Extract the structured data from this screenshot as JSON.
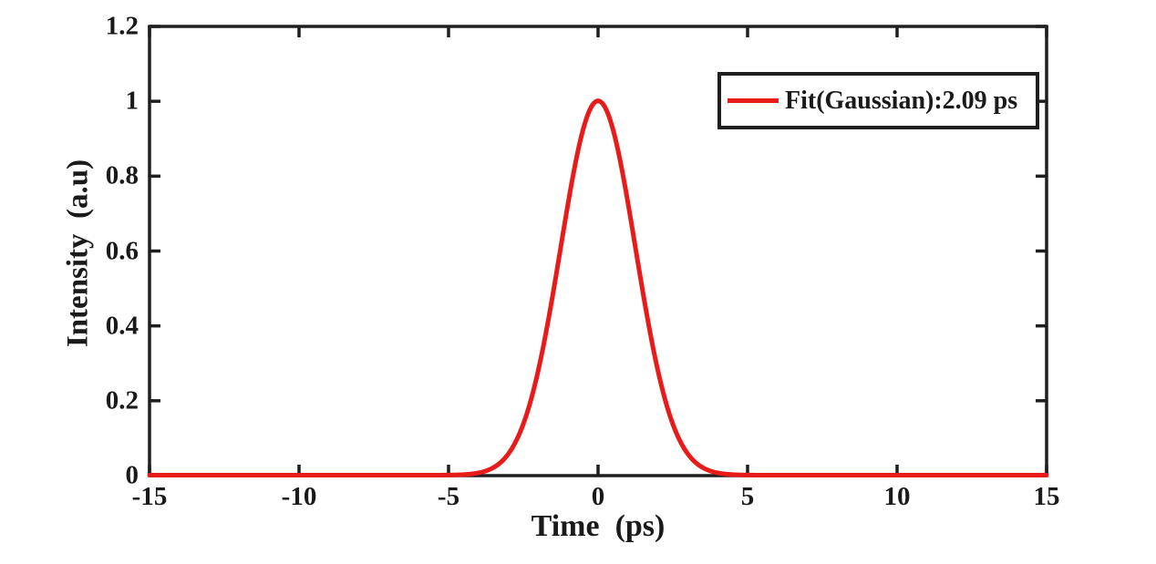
{
  "figure": {
    "background": "#ffffff"
  },
  "chart_data": {
    "type": "line",
    "title": "",
    "xlabel": "Time  (ps)",
    "ylabel": "Intensity  (a.u)",
    "xlim": [
      -15,
      15
    ],
    "ylim": [
      0,
      1.2
    ],
    "xticks": [
      -15,
      -10,
      -5,
      0,
      5,
      10,
      15
    ],
    "xtick_labels": [
      "-15",
      "-10",
      "-5",
      "0",
      "5",
      "10",
      "15"
    ],
    "yticks": [
      0,
      0.2,
      0.4,
      0.6,
      0.8,
      1,
      1.2
    ],
    "ytick_labels": [
      "0",
      "0.2",
      "0.4",
      "0.6",
      "0.8",
      "1",
      "1.2"
    ],
    "grid": false,
    "box": true,
    "tick_direction": "in",
    "legend": {
      "position": "top-right",
      "border": true,
      "entries": [
        {
          "label": "Fit(Gaussian):2.09 ps",
          "color": "#e81a1a",
          "line_style": "solid"
        }
      ]
    },
    "colors": {
      "curve": "#e81a1a",
      "axis": "#1f1f1f",
      "text": "#1a1a1a",
      "background": "#ffffff"
    },
    "series": [
      {
        "name": "Fit(Gaussian):2.09 ps",
        "model": "gaussian",
        "center_ps": 0,
        "peak_intensity": 1.0,
        "sigma_ps": 1.253,
        "fwhm_curve_ps": 2.95,
        "fit_width_ps": 2.09,
        "x_ps": [
          -15,
          -6,
          -5.5,
          -5,
          -4.5,
          -4,
          -3.5,
          -3,
          -2.5,
          -2,
          -1.5,
          -1,
          -0.5,
          0,
          0.5,
          1,
          1.5,
          2,
          2.5,
          3,
          3.5,
          4,
          4.5,
          5,
          5.5,
          6,
          15
        ],
        "y": [
          0,
          0,
          0.0001,
          0.0004,
          0.0016,
          0.0061,
          0.0202,
          0.0569,
          0.137,
          0.28,
          0.488,
          0.727,
          0.923,
          1,
          0.923,
          0.727,
          0.488,
          0.28,
          0.137,
          0.0569,
          0.0202,
          0.0061,
          0.0016,
          0.0004,
          0.0001,
          0,
          0
        ]
      }
    ]
  }
}
